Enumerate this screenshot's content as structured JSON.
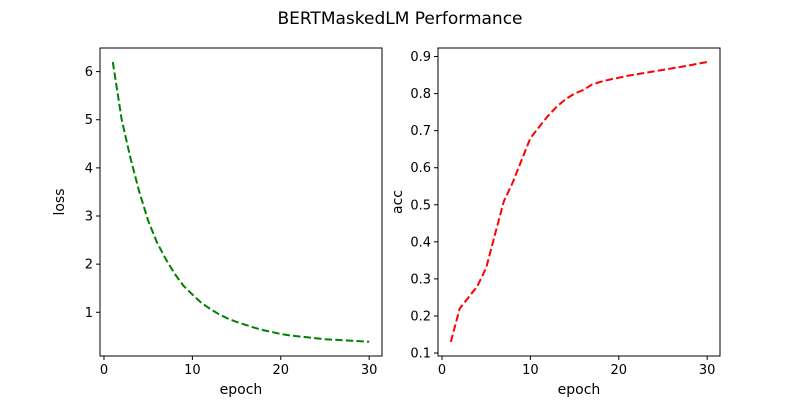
{
  "figure": {
    "title": "BERTMaskedLM Performance",
    "background": "#ffffff",
    "axis_color": "#000000"
  },
  "chart_data": [
    {
      "id": "loss",
      "type": "line",
      "title": "",
      "xlabel": "epoch",
      "ylabel": "loss",
      "grid": false,
      "legend": "none",
      "xlim": [
        -0.45,
        31.45
      ],
      "ylim": [
        0.092,
        6.49
      ],
      "xticks": [
        0,
        10,
        20,
        30
      ],
      "xtick_labels": [
        "0",
        "10",
        "20",
        "30"
      ],
      "yticks": [
        1,
        2,
        3,
        4,
        5,
        6
      ],
      "ytick_labels": [
        "1",
        "2",
        "3",
        "4",
        "5",
        "6"
      ],
      "x": [
        1,
        2,
        3,
        4,
        5,
        6,
        7,
        8,
        9,
        10,
        11,
        12,
        13,
        14,
        15,
        16,
        17,
        18,
        19,
        20,
        21,
        22,
        23,
        24,
        25,
        26,
        27,
        28,
        29,
        30
      ],
      "series": [
        {
          "name": "loss",
          "color": "#008000",
          "linestyle": "dashed",
          "linewidth": 2,
          "values": [
            6.2,
            5.0,
            4.2,
            3.5,
            2.9,
            2.45,
            2.1,
            1.8,
            1.55,
            1.37,
            1.2,
            1.07,
            0.96,
            0.87,
            0.8,
            0.74,
            0.68,
            0.63,
            0.59,
            0.55,
            0.52,
            0.5,
            0.48,
            0.46,
            0.44,
            0.43,
            0.42,
            0.41,
            0.4,
            0.39
          ]
        }
      ]
    },
    {
      "id": "acc",
      "type": "line",
      "title": "",
      "xlabel": "epoch",
      "ylabel": "acc",
      "grid": false,
      "legend": "none",
      "xlim": [
        -0.45,
        31.45
      ],
      "ylim": [
        0.092,
        0.923
      ],
      "xticks": [
        0,
        10,
        20,
        30
      ],
      "xtick_labels": [
        "0",
        "10",
        "20",
        "30"
      ],
      "yticks": [
        0.1,
        0.2,
        0.3,
        0.4,
        0.5,
        0.6,
        0.7,
        0.8,
        0.9
      ],
      "ytick_labels": [
        "0.1",
        "0.2",
        "0.3",
        "0.4",
        "0.5",
        "0.6",
        "0.7",
        "0.8",
        "0.9"
      ],
      "x": [
        1,
        2,
        3,
        4,
        5,
        6,
        7,
        8,
        9,
        10,
        11,
        12,
        13,
        14,
        15,
        16,
        17,
        18,
        19,
        20,
        21,
        22,
        23,
        24,
        25,
        26,
        27,
        28,
        29,
        30
      ],
      "series": [
        {
          "name": "acc",
          "color": "#ff0000",
          "linestyle": "dashed",
          "linewidth": 2,
          "values": [
            0.13,
            0.22,
            0.25,
            0.28,
            0.33,
            0.42,
            0.51,
            0.56,
            0.62,
            0.68,
            0.71,
            0.74,
            0.765,
            0.785,
            0.8,
            0.81,
            0.825,
            0.832,
            0.838,
            0.843,
            0.848,
            0.852,
            0.856,
            0.86,
            0.864,
            0.868,
            0.872,
            0.876,
            0.881,
            0.885
          ]
        }
      ]
    }
  ]
}
